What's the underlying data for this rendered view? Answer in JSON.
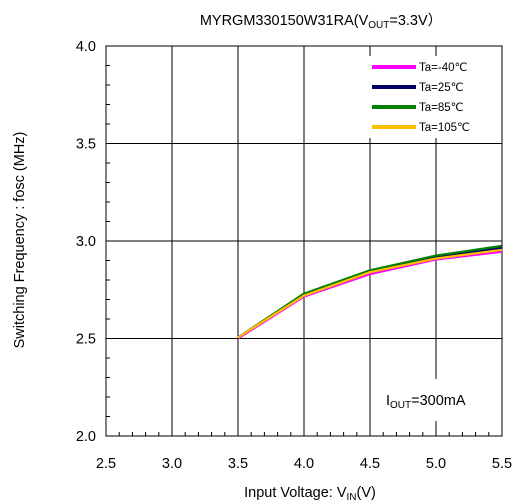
{
  "chart_data": {
    "type": "line",
    "title": {
      "main": "MYRGM330150W31RA(V",
      "sub": "OUT",
      "tail": "=3.3V）"
    },
    "xlabel": {
      "main": "Input Voltage: V",
      "sub": "IN",
      "tail": "(V)"
    },
    "ylabel": "Switching Frequency : fosc (MHz)",
    "xlim": [
      2.5,
      5.5
    ],
    "ylim": [
      2.0,
      4.0
    ],
    "xticks": [
      2.5,
      3.0,
      3.5,
      4.0,
      4.5,
      5.0,
      5.5
    ],
    "xtick_labels": [
      "2.5",
      "3.0",
      "3.5",
      "4.0",
      "4.5",
      "5.0",
      "5.5"
    ],
    "yticks": [
      2.0,
      2.5,
      3.0,
      3.5,
      4.0
    ],
    "ytick_labels": [
      "2.0",
      "2.5",
      "3.0",
      "3.5",
      "4.0"
    ],
    "grid": true,
    "legend_position": "top-right",
    "annotation": {
      "main": "I",
      "sub": "OUT",
      "tail": "=300mA"
    },
    "series": [
      {
        "name": "Ta=-40℃",
        "color": "#ff00ff",
        "x": [
          3.5,
          4.0,
          4.5,
          5.0,
          5.5
        ],
        "y": [
          2.5,
          2.715,
          2.83,
          2.905,
          2.945
        ]
      },
      {
        "name": "Ta=25℃",
        "color": "#000066",
        "x": [
          3.5,
          4.0,
          4.5,
          5.0,
          5.5
        ],
        "y": [
          2.505,
          2.725,
          2.845,
          2.92,
          2.965
        ]
      },
      {
        "name": "Ta=85℃",
        "color": "#008000",
        "x": [
          3.5,
          4.0,
          4.5,
          5.0,
          5.5
        ],
        "y": [
          2.505,
          2.73,
          2.85,
          2.925,
          2.975
        ]
      },
      {
        "name": "Ta=105℃",
        "color": "#ffc000",
        "x": [
          3.5,
          4.0,
          4.5,
          5.0,
          5.5
        ],
        "y": [
          2.505,
          2.72,
          2.84,
          2.91,
          2.955
        ]
      }
    ]
  }
}
